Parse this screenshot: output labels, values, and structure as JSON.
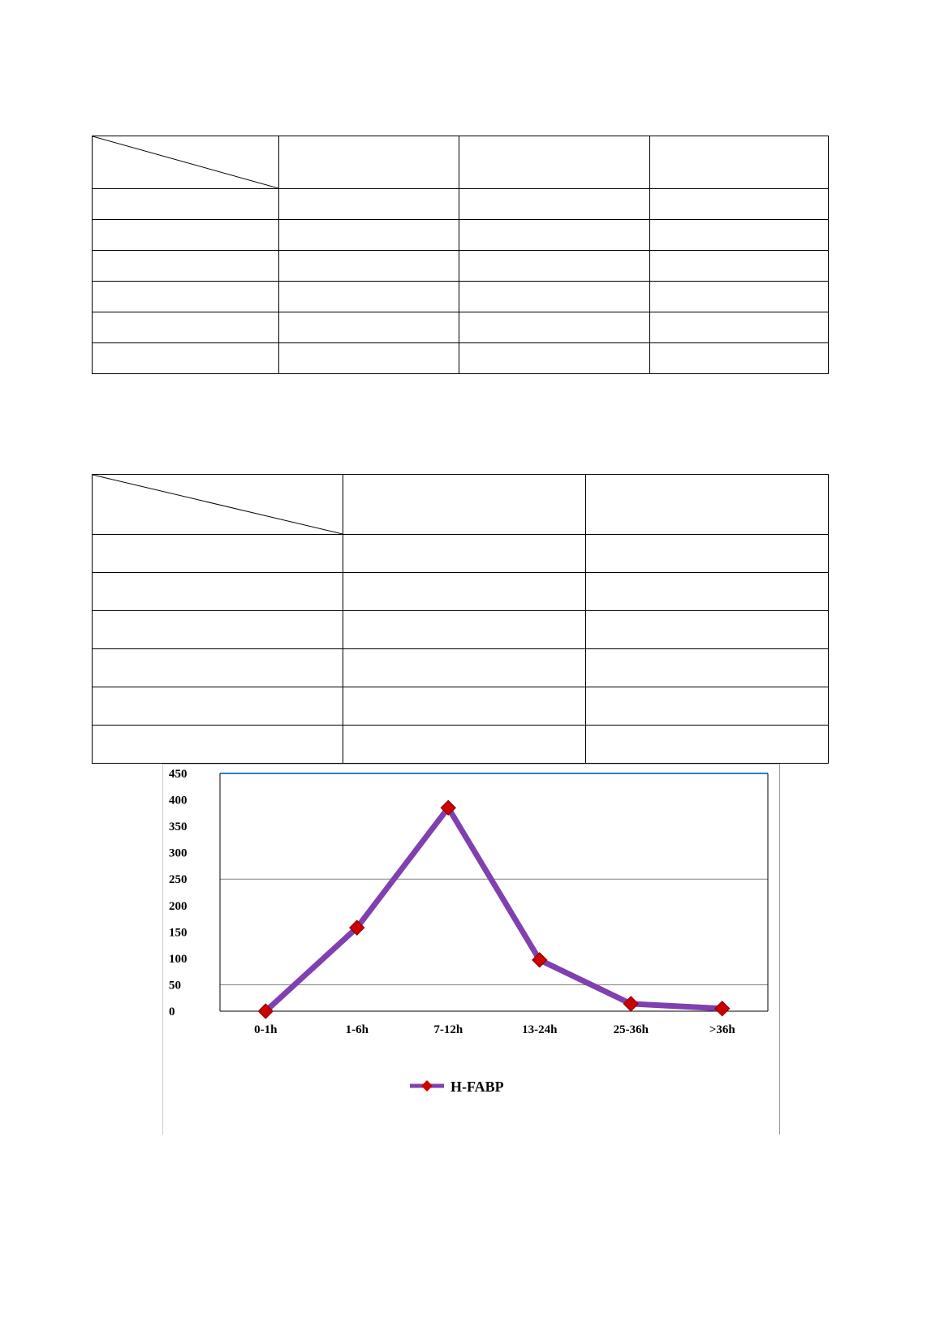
{
  "table_1": {
    "columns": [
      "",
      "",
      "",
      ""
    ],
    "rows": [
      [
        "",
        "",
        "",
        ""
      ],
      [
        "",
        "",
        "",
        ""
      ],
      [
        "",
        "",
        "",
        ""
      ],
      [
        "",
        "",
        "",
        ""
      ],
      [
        "",
        "",
        "",
        ""
      ],
      [
        "",
        "",
        "",
        ""
      ]
    ]
  },
  "table_2": {
    "columns": [
      "",
      "",
      ""
    ],
    "rows": [
      [
        "",
        "",
        ""
      ],
      [
        "",
        "",
        ""
      ],
      [
        "",
        "",
        ""
      ],
      [
        "",
        "",
        ""
      ],
      [
        "",
        "",
        ""
      ],
      [
        "",
        "",
        ""
      ]
    ]
  },
  "chart_data": {
    "type": "line",
    "categories": [
      "0-1h",
      "1-6h",
      "7-12h",
      "13-24h",
      "25-36h",
      ">36h"
    ],
    "series": [
      {
        "name": "H-FABP",
        "values": [
          0,
          158,
          385,
          97,
          14,
          5
        ],
        "color": "#8040b0",
        "marker_color": "#cc0000"
      }
    ],
    "yticks": [
      "450",
      "400",
      "350",
      "300",
      "250",
      "200",
      "150",
      "100",
      "50",
      "0"
    ],
    "ylim": [
      0,
      450
    ],
    "gridlines": [
      50,
      250,
      450
    ],
    "gridline_color": "#808080",
    "top_line_color": "#2a7fb8",
    "legend_position": "bottom"
  }
}
